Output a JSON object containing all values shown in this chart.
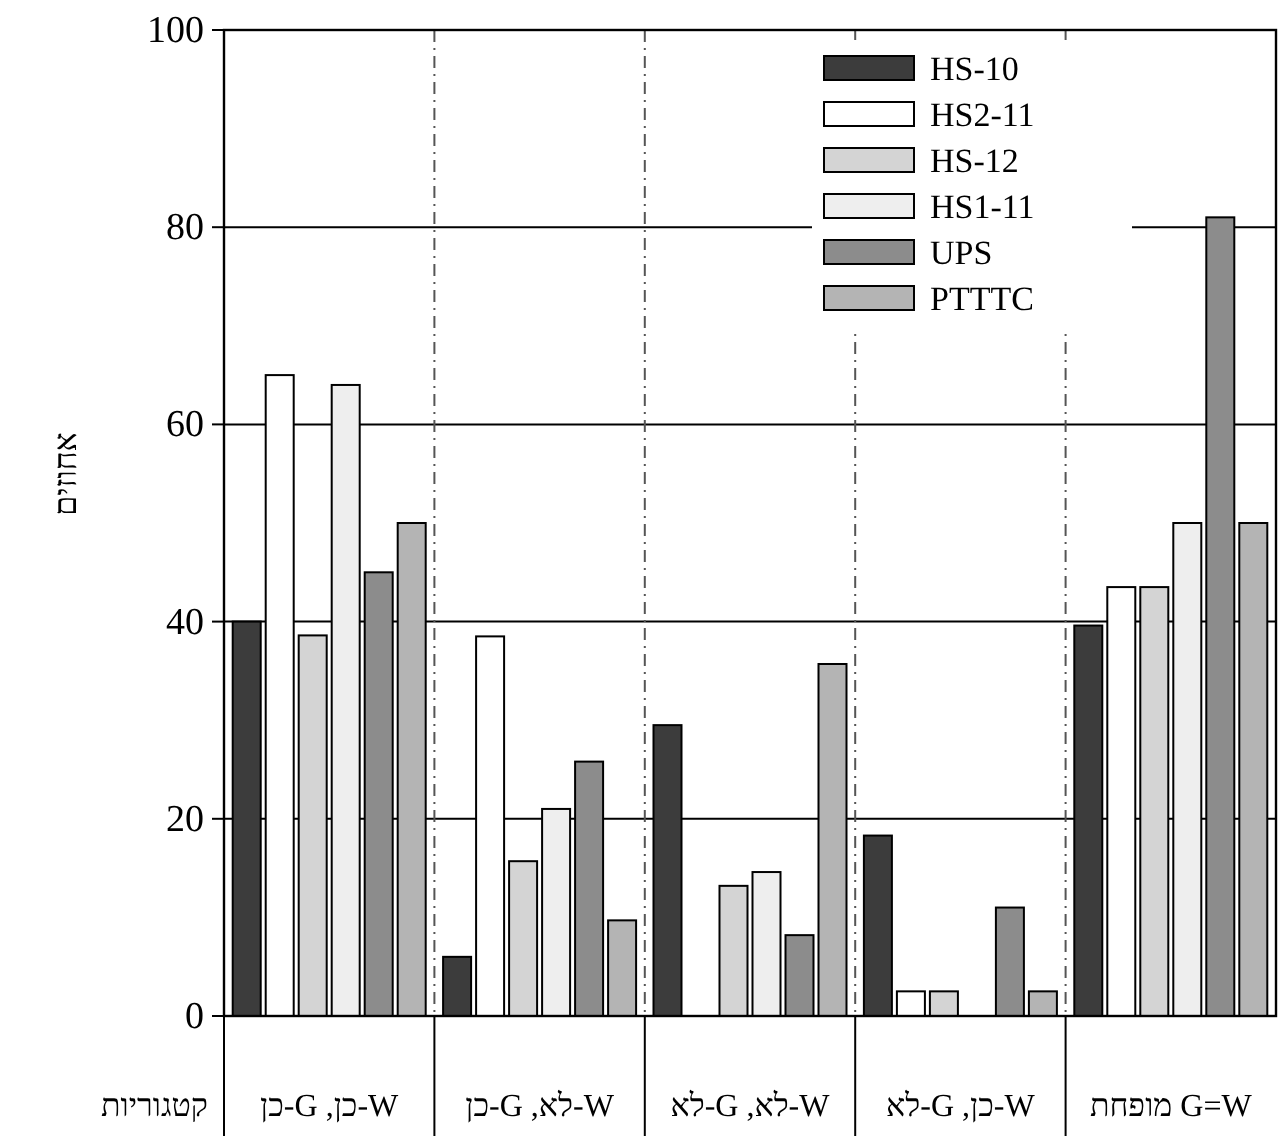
{
  "chart_data": {
    "type": "bar",
    "categories": [
      "W-כן, G-כן",
      "W-לא, G-כן",
      "W-לא, G-לא",
      "W-כן, G-לא",
      "G=W מופחת"
    ],
    "xlabel": "קטגוריות",
    "ylabel": "אחוזים",
    "series": [
      {
        "name": "HS-10",
        "color": "#3c3c3c",
        "values": [
          40,
          6,
          29.5,
          18.3,
          39.6
        ]
      },
      {
        "name": "HS2-11",
        "color": "#ffffff",
        "values": [
          65,
          38.5,
          null,
          2.5,
          43.5
        ]
      },
      {
        "name": "HS-12",
        "color": "#d4d4d4",
        "values": [
          38.6,
          15.7,
          13.2,
          2.5,
          43.5
        ]
      },
      {
        "name": "HS1-11",
        "color": "#eeeeee",
        "values": [
          64,
          21,
          14.6,
          null,
          50
        ]
      },
      {
        "name": "UPS",
        "color": "#8c8c8c",
        "values": [
          45,
          25.8,
          8.2,
          11,
          81
        ]
      },
      {
        "name": "PTTTC",
        "color": "#b4b4b4",
        "values": [
          50,
          9.7,
          35.7,
          2.5,
          50
        ]
      }
    ],
    "ylim": [
      0,
      100
    ],
    "yticks": [
      0,
      20,
      40,
      60,
      80,
      100
    ],
    "grid": "y",
    "legend": "top right"
  }
}
